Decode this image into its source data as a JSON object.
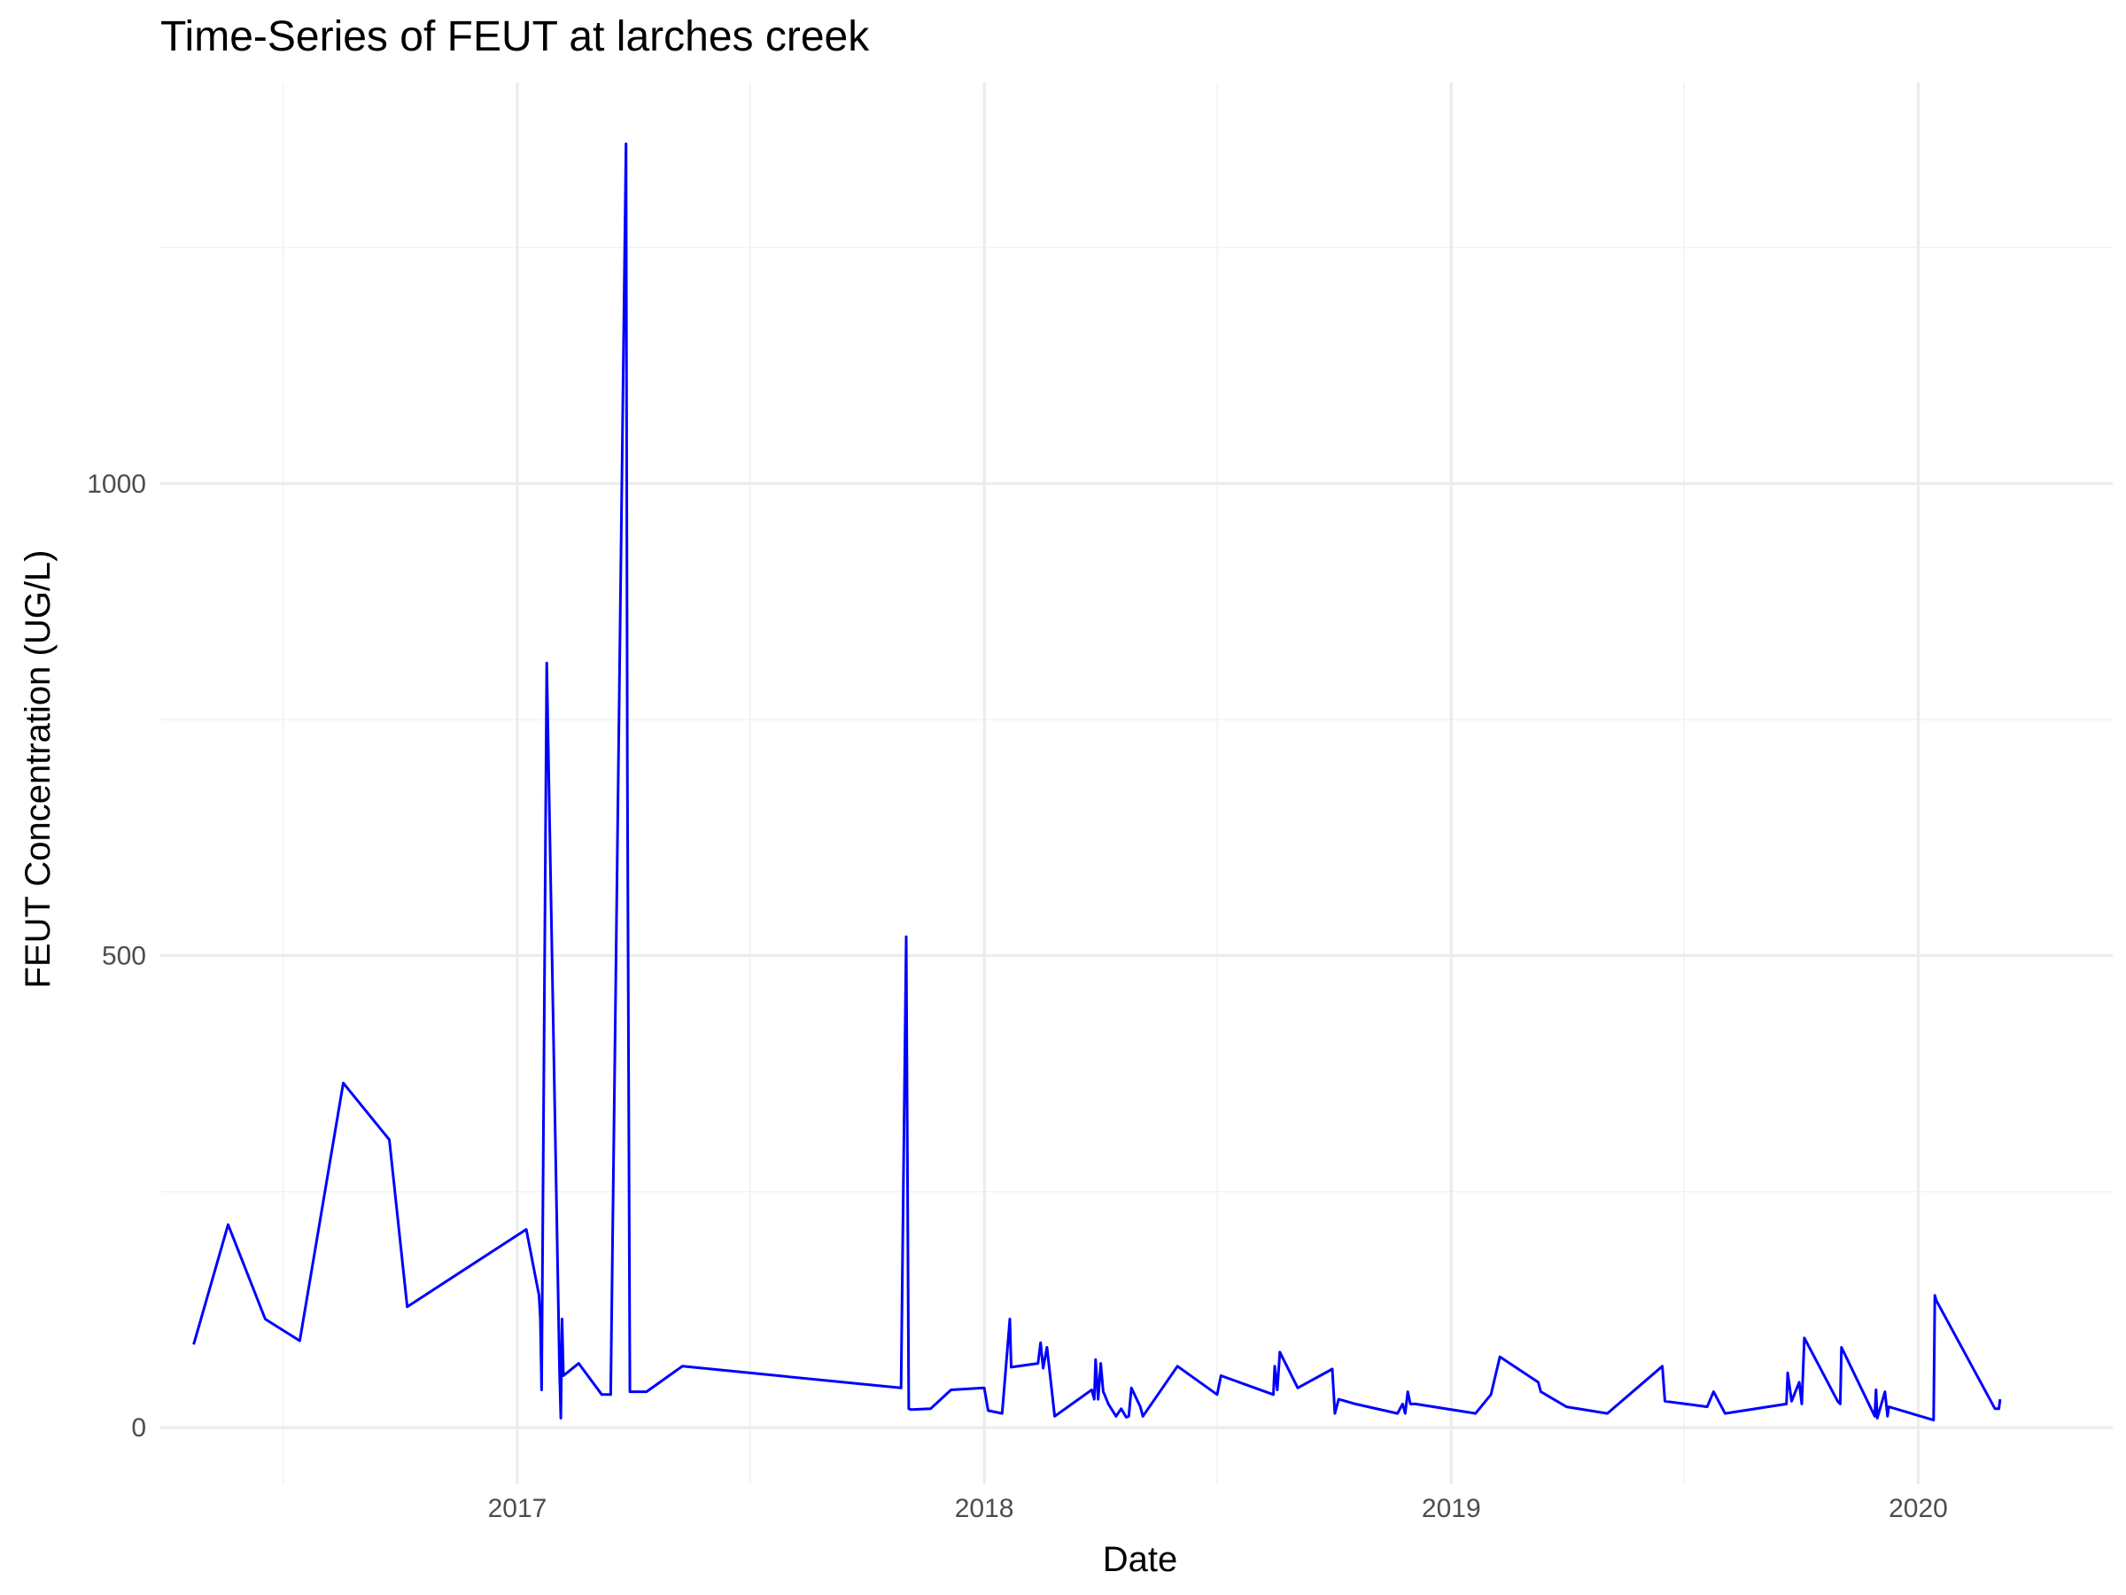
{
  "chart_data": {
    "type": "line",
    "title": "Time-Series of FEUT at larches creek",
    "xlabel": "Date",
    "ylabel": "FEUT Concentration (UG/L)",
    "x_ticks": [
      "2017",
      "2018",
      "2019",
      "2020"
    ],
    "y_ticks": [
      "0",
      "500",
      "1000"
    ],
    "xlim": [
      "2016-03-28",
      "2020-06-01"
    ],
    "ylim": [
      -60,
      1425
    ],
    "grid": true,
    "legend": "none",
    "line_color": "#0000ff",
    "series": [
      {
        "x": [
          "2016-04-23",
          "2016-05-20",
          "2016-06-18",
          "2016-07-15",
          "2016-08-18",
          "2016-09-23",
          "2016-10-07",
          "2017-01-08",
          "2017-01-18",
          "2017-01-19",
          "2017-01-20",
          "2017-01-24",
          "2017-02-03",
          "2017-02-04",
          "2017-02-05",
          "2017-02-06",
          "2017-02-18",
          "2017-03-08",
          "2017-03-15",
          "2017-03-27",
          "2017-03-28",
          "2017-03-30",
          "2017-04-01",
          "2017-04-12",
          "2017-05-10",
          "2017-10-28",
          "2017-11-01",
          "2017-11-03",
          "2017-11-05",
          "2017-11-20",
          "2017-12-06",
          "2018-01-01",
          "2018-01-04",
          "2018-01-15",
          "2018-01-21",
          "2018-01-22",
          "2018-02-12",
          "2018-02-14",
          "2018-02-16",
          "2018-02-19",
          "2018-02-25",
          "2018-03-26",
          "2018-03-28",
          "2018-03-29",
          "2018-03-31",
          "2018-04-02",
          "2018-04-04",
          "2018-04-05",
          "2018-04-08",
          "2018-04-14",
          "2018-04-18",
          "2018-04-22",
          "2018-04-24",
          "2018-04-26",
          "2018-05-03",
          "2018-05-05",
          "2018-06-01",
          "2018-07-02",
          "2018-07-05",
          "2018-08-15",
          "2018-08-16",
          "2018-08-18",
          "2018-08-20",
          "2018-09-03",
          "2018-09-30",
          "2018-10-02",
          "2018-10-05",
          "2018-10-18",
          "2018-11-20",
          "2018-11-24",
          "2018-11-26",
          "2018-11-28",
          "2018-11-30",
          "2018-12-04",
          "2019-01-20",
          "2019-02-01",
          "2019-02-08",
          "2019-03-10",
          "2019-03-12",
          "2019-04-01",
          "2019-05-03",
          "2019-06-15",
          "2019-06-17",
          "2019-07-20",
          "2019-07-25",
          "2019-08-03",
          "2019-09-20",
          "2019-09-21",
          "2019-09-24",
          "2019-09-30",
          "2019-10-02",
          "2019-10-04",
          "2019-10-30",
          "2019-11-01",
          "2019-11-02",
          "2019-11-28",
          "2019-11-29",
          "2019-11-30",
          "2019-12-06",
          "2019-12-08",
          "2019-12-09",
          "2020-01-13",
          "2020-01-14",
          "2020-01-15",
          "2020-03-01",
          "2020-03-04",
          "2020-03-05"
        ],
        "y": [
          88,
          215,
          115,
          92,
          365,
          305,
          128,
          210,
          140,
          115,
          40,
          810,
          62,
          10,
          115,
          55,
          68,
          35,
          35,
          1360,
          700,
          38,
          38,
          38,
          65,
          42,
          520,
          20,
          19,
          20,
          40,
          42,
          18,
          15,
          115,
          64,
          68,
          90,
          63,
          85,
          12,
          40,
          30,
          72,
          30,
          68,
          38,
          35,
          25,
          12,
          20,
          11,
          12,
          42,
          22,
          12,
          65,
          35,
          55,
          35,
          65,
          40,
          80,
          42,
          62,
          15,
          30,
          25,
          15,
          25,
          15,
          38,
          25,
          25,
          15,
          35,
          75,
          48,
          38,
          22,
          15,
          65,
          28,
          22,
          38,
          15,
          25,
          58,
          28,
          48,
          25,
          95,
          28,
          25,
          85,
          12,
          40,
          10,
          38,
          12,
          22,
          8,
          140,
          135,
          20,
          20,
          30
        ]
      }
    ]
  }
}
